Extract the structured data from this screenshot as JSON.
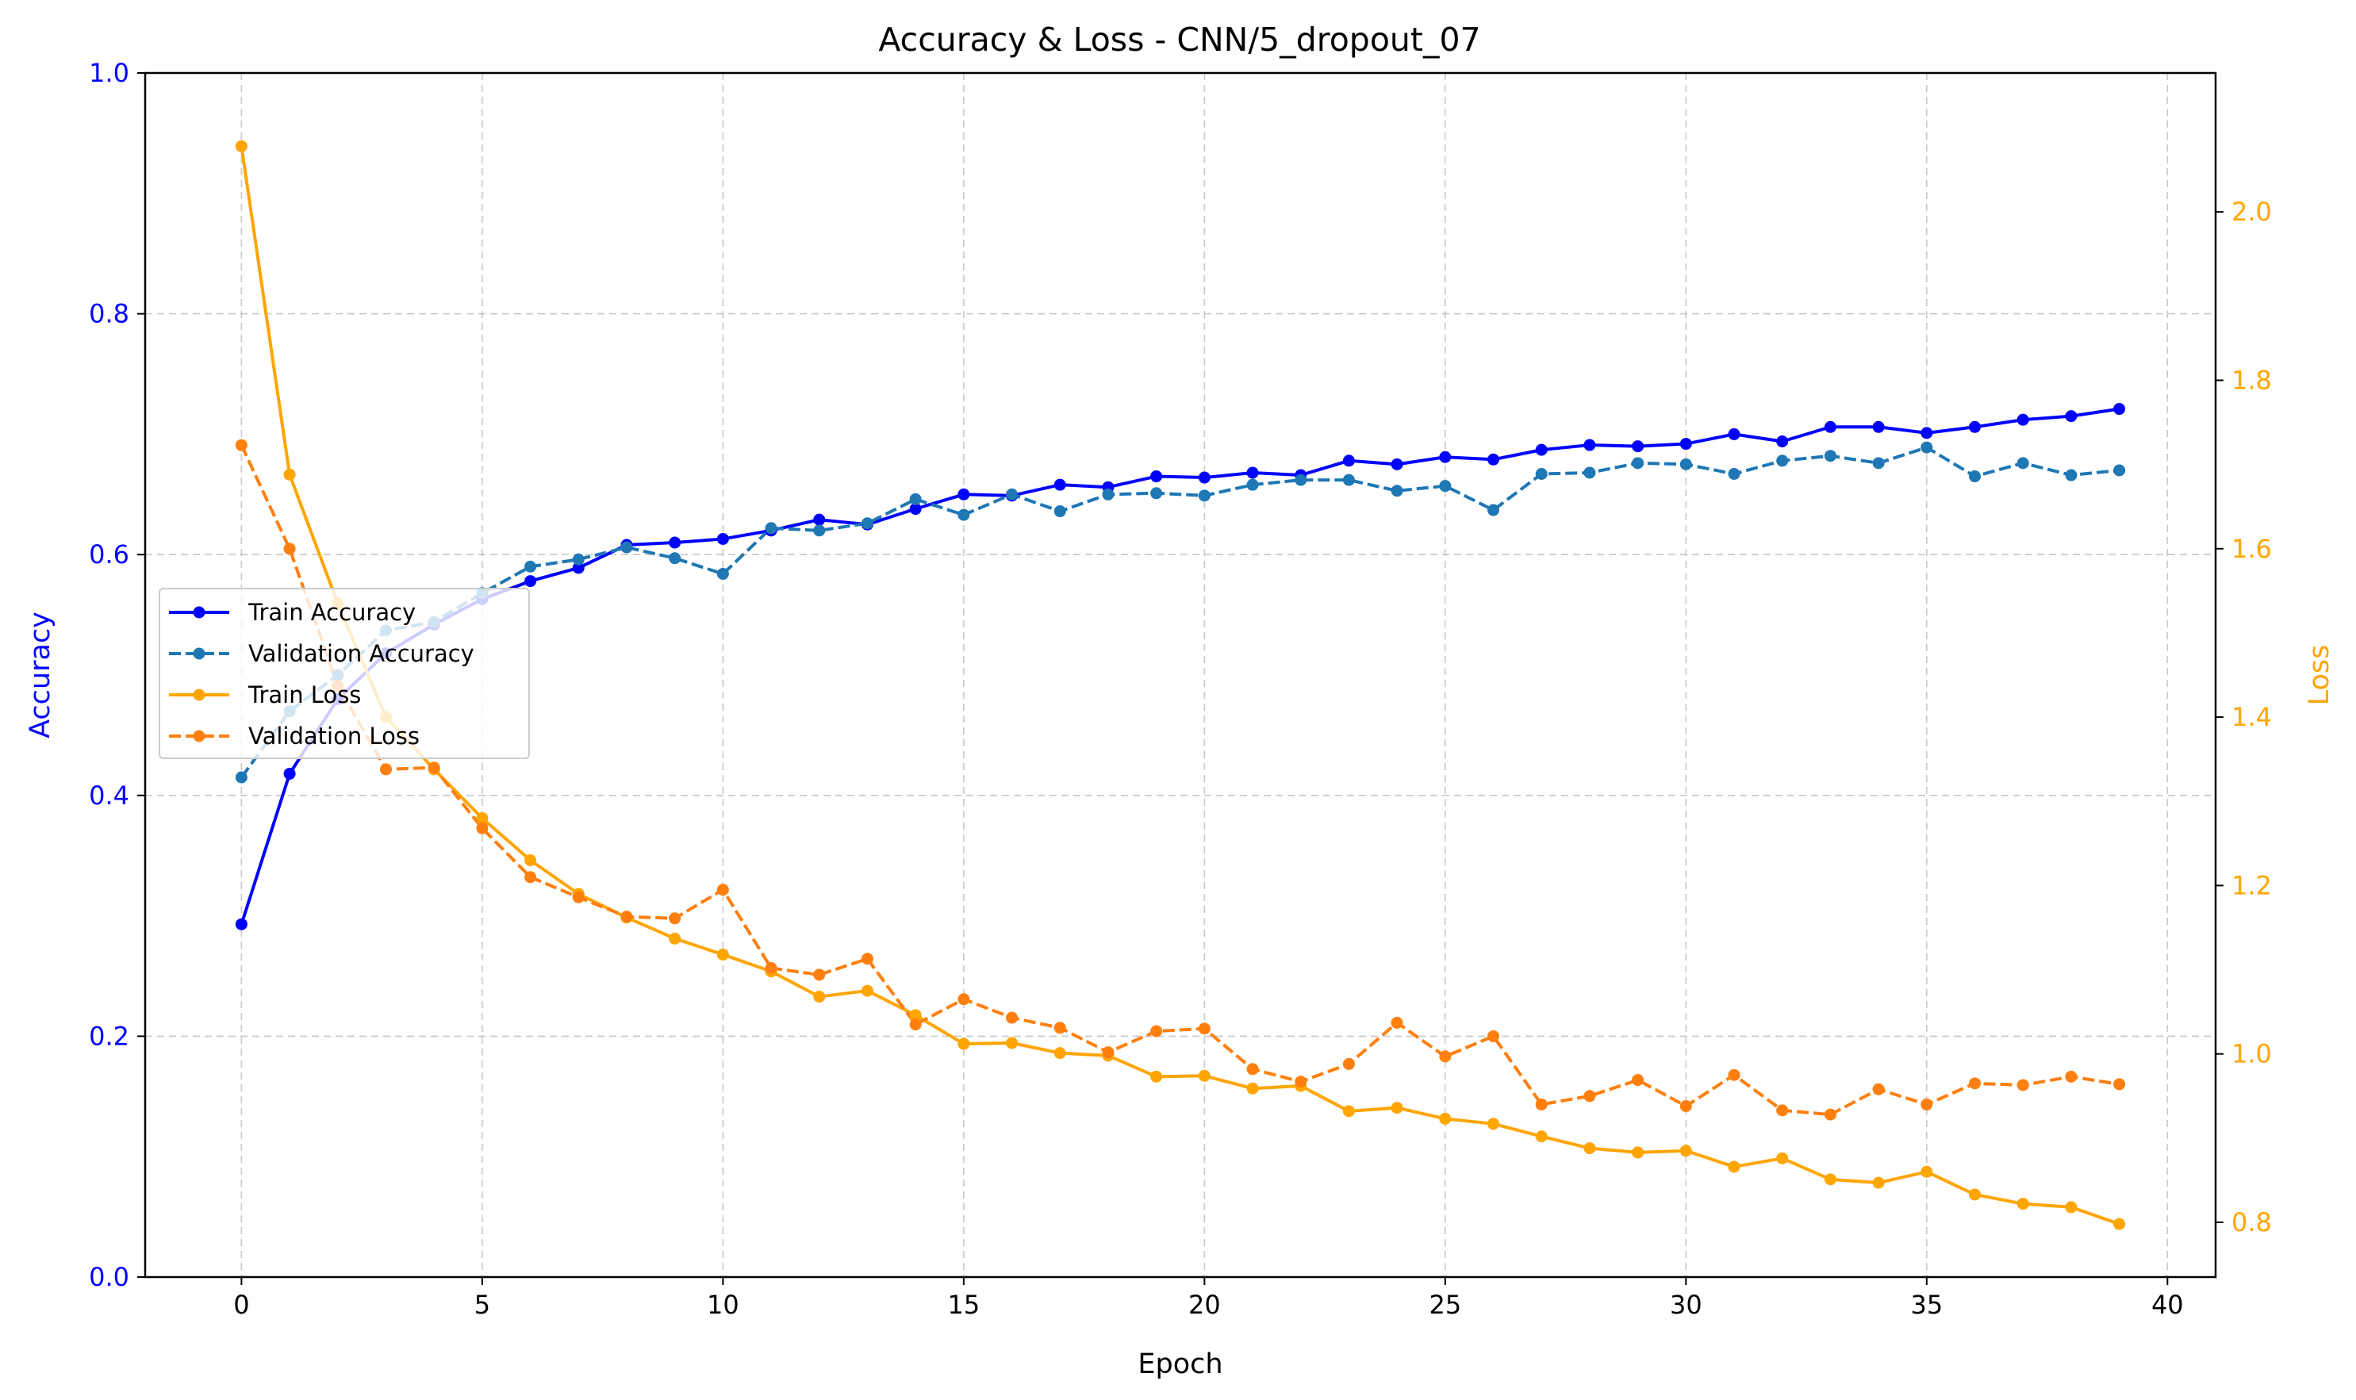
{
  "chart_data": {
    "type": "line",
    "title": "Accuracy & Loss - CNN/5_dropout_07",
    "xlabel": "Epoch",
    "ylabel_left": "Accuracy",
    "ylabel_right": "Loss",
    "xlim": [
      -2,
      41
    ],
    "ylim_left": [
      0.0,
      1.0
    ],
    "ylim_right": [
      0.735,
      2.165
    ],
    "x_ticks": [
      0,
      5,
      10,
      15,
      20,
      25,
      30,
      35,
      40
    ],
    "y_ticks_left": [
      0.0,
      0.2,
      0.4,
      0.6,
      0.8,
      1.0
    ],
    "y_ticks_right": [
      0.8,
      1.0,
      1.2,
      1.4,
      1.6,
      1.8,
      2.0
    ],
    "x_tick_labels": [
      "0",
      "5",
      "10",
      "15",
      "20",
      "25",
      "30",
      "35",
      "40"
    ],
    "y_tick_labels_left": [
      "0.0",
      "0.2",
      "0.4",
      "0.6",
      "0.8",
      "1.0"
    ],
    "y_tick_labels_right": [
      "0.8",
      "1.0",
      "1.2",
      "1.4",
      "1.6",
      "1.8",
      "2.0"
    ],
    "grid": true,
    "legend_placement": "center-left",
    "colors": {
      "left_axis": "#0000ff",
      "right_axis": "#ffa500",
      "train_accuracy": "#0000ff",
      "validation_accuracy": "#1f77b4",
      "train_loss": "#ffa500",
      "validation_loss": "#ff7f0e"
    },
    "x": [
      0,
      1,
      2,
      3,
      4,
      5,
      6,
      7,
      8,
      9,
      10,
      11,
      12,
      13,
      14,
      15,
      16,
      17,
      18,
      19,
      20,
      21,
      22,
      23,
      24,
      25,
      26,
      27,
      28,
      29,
      30,
      31,
      32,
      33,
      34,
      35,
      36,
      37,
      38,
      39
    ],
    "series": [
      {
        "name": "Train Accuracy",
        "axis": "left",
        "style": "solid",
        "color": "#0000ff",
        "values": [
          0.293,
          0.418,
          0.48,
          0.518,
          0.542,
          0.563,
          0.578,
          0.589,
          0.608,
          0.61,
          0.613,
          0.62,
          0.629,
          0.625,
          0.638,
          0.65,
          0.649,
          0.658,
          0.656,
          0.665,
          0.664,
          0.668,
          0.666,
          0.678,
          0.675,
          0.681,
          0.679,
          0.687,
          0.691,
          0.69,
          0.692,
          0.7,
          0.694,
          0.706,
          0.706,
          0.701,
          0.706,
          0.712,
          0.715,
          0.721
        ]
      },
      {
        "name": "Validation Accuracy",
        "axis": "left",
        "style": "dashed",
        "color": "#1f77b4",
        "values": [
          0.415,
          0.47,
          0.5,
          0.537,
          0.544,
          0.568,
          0.59,
          0.596,
          0.606,
          0.597,
          0.584,
          0.622,
          0.62,
          0.626,
          0.646,
          0.633,
          0.65,
          0.636,
          0.65,
          0.651,
          0.649,
          0.658,
          0.662,
          0.662,
          0.653,
          0.657,
          0.637,
          0.667,
          0.668,
          0.676,
          0.675,
          0.667,
          0.678,
          0.682,
          0.676,
          0.689,
          0.665,
          0.676,
          0.666,
          0.67
        ]
      },
      {
        "name": "Train Loss",
        "axis": "right",
        "style": "solid",
        "color": "#ffa500",
        "values": [
          2.078,
          1.688,
          1.535,
          1.4,
          1.338,
          1.28,
          1.23,
          1.19,
          1.162,
          1.137,
          1.118,
          1.098,
          1.068,
          1.075,
          1.046,
          1.012,
          1.013,
          1.001,
          0.998,
          0.973,
          0.974,
          0.959,
          0.962,
          0.932,
          0.936,
          0.923,
          0.917,
          0.902,
          0.888,
          0.883,
          0.885,
          0.866,
          0.876,
          0.851,
          0.847,
          0.86,
          0.833,
          0.822,
          0.818,
          0.798
        ]
      },
      {
        "name": "Validation Loss",
        "axis": "right",
        "style": "dashed",
        "color": "#ff7f0e",
        "values": [
          1.723,
          1.6,
          1.437,
          1.338,
          1.34,
          1.268,
          1.21,
          1.186,
          1.163,
          1.161,
          1.195,
          1.102,
          1.094,
          1.113,
          1.035,
          1.065,
          1.043,
          1.031,
          1.002,
          1.027,
          1.03,
          0.982,
          0.967,
          0.988,
          1.037,
          0.997,
          1.021,
          0.94,
          0.95,
          0.969,
          0.938,
          0.975,
          0.933,
          0.928,
          0.958,
          0.94,
          0.965,
          0.963,
          0.973,
          0.964
        ]
      }
    ]
  }
}
